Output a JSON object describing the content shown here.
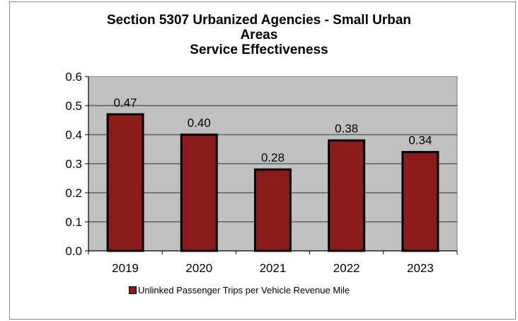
{
  "chart_data": {
    "type": "bar",
    "title_lines": [
      "Section 5307 Urbanized Agencies - Small Urban",
      "Areas",
      "Service Effectiveness"
    ],
    "categories": [
      "2019",
      "2020",
      "2021",
      "2022",
      "2023"
    ],
    "series": [
      {
        "name": "Unlinked Passenger Trips per Vehicle Revenue Mile",
        "values": [
          0.47,
          0.4,
          0.28,
          0.38,
          0.34
        ],
        "labels": [
          "0.47",
          "0.40",
          "0.28",
          "0.38",
          "0.34"
        ],
        "color": "#8b1a1a"
      }
    ],
    "ylim": [
      0,
      0.6
    ],
    "yticks": [
      0.0,
      0.1,
      0.2,
      0.3,
      0.4,
      0.5,
      0.6
    ],
    "ytick_labels": [
      "0.0",
      "0.1",
      "0.2",
      "0.3",
      "0.4",
      "0.5",
      "0.6"
    ],
    "grid": true,
    "plot_background": "#c0c0c0",
    "legend_position": "bottom"
  }
}
